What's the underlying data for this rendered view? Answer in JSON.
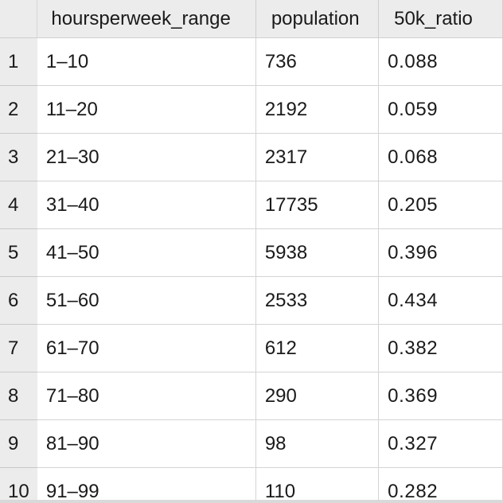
{
  "grid": {
    "columns": [
      "hoursperweek_range",
      "population",
      "50k_ratio"
    ],
    "rows": [
      {
        "index": "1",
        "hoursperweek_range": "1–10",
        "population": "736",
        "ratio": "0.088"
      },
      {
        "index": "2",
        "hoursperweek_range": "11–20",
        "population": "2192",
        "ratio": "0.059"
      },
      {
        "index": "3",
        "hoursperweek_range": "21–30",
        "population": "2317",
        "ratio": "0.068"
      },
      {
        "index": "4",
        "hoursperweek_range": "31–40",
        "population": "17735",
        "ratio": "0.205"
      },
      {
        "index": "5",
        "hoursperweek_range": "41–50",
        "population": "5938",
        "ratio": "0.396"
      },
      {
        "index": "6",
        "hoursperweek_range": "51–60",
        "population": "2533",
        "ratio": "0.434"
      },
      {
        "index": "7",
        "hoursperweek_range": "61–70",
        "population": "612",
        "ratio": "0.382"
      },
      {
        "index": "8",
        "hoursperweek_range": "71–80",
        "population": "290",
        "ratio": "0.369"
      },
      {
        "index": "9",
        "hoursperweek_range": "81–90",
        "population": "98",
        "ratio": "0.327"
      },
      {
        "index": "10",
        "hoursperweek_range": "91–99",
        "population": "110",
        "ratio": "0.282"
      }
    ]
  }
}
